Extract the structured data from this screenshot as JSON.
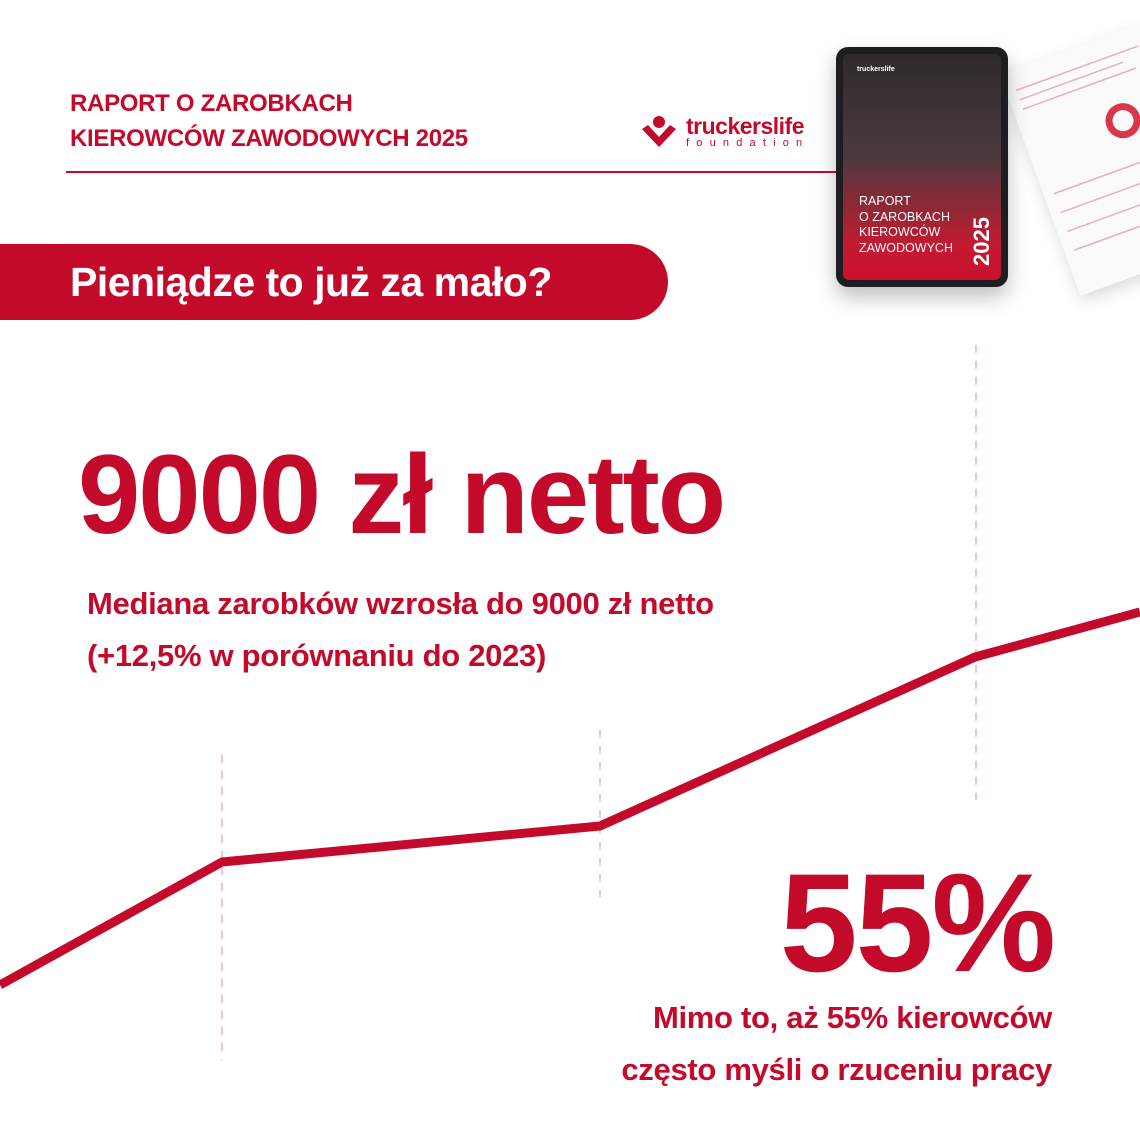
{
  "header": {
    "title_line1": "RAPORT O ZAROBKACH",
    "title_line2": "KIEROWCÓW ZAWODOWYCH 2025"
  },
  "logo": {
    "name": "truckerslife",
    "sub": "foundation",
    "icon": "heart-person-icon"
  },
  "banner": {
    "text": "Pieniądze to już za mało?"
  },
  "report_cover": {
    "brand": "truckerslife",
    "title": [
      "RAPORT",
      "O ZAROBKACH",
      "KIEROWCÓW",
      "ZAWODOWYCH"
    ],
    "year": "2025"
  },
  "stat1": {
    "value": "9000 zł netto",
    "line1": "Mediana zarobków wzrosła do 9000 zł netto",
    "line2": "(+12,5% w porównaniu do 2023)"
  },
  "stat2": {
    "value": "55%",
    "line1": "Mimo to, aż 55% kierowców",
    "line2": "często myśli o rzuceniu pracy"
  },
  "colors": {
    "brand": "#c40a2b"
  }
}
